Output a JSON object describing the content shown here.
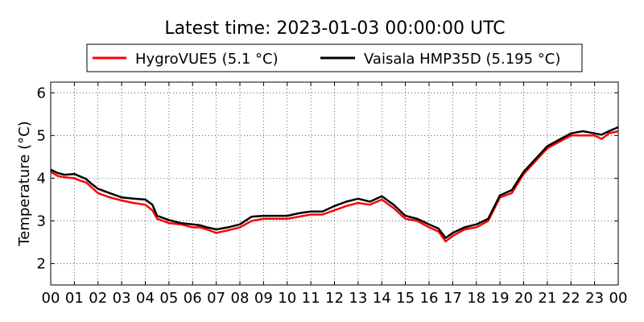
{
  "chart_data": {
    "type": "line",
    "title": "Latest time: 2023-01-03 00:00:00 UTC",
    "xlabel": "",
    "ylabel": "Temperature (°C)",
    "xlim": [
      0,
      24
    ],
    "ylim": [
      1.5,
      6.25
    ],
    "grid": true,
    "legend_position": "top",
    "x_ticks": [
      0,
      1,
      2,
      3,
      4,
      5,
      6,
      7,
      8,
      9,
      10,
      11,
      12,
      13,
      14,
      15,
      16,
      17,
      18,
      19,
      20,
      21,
      22,
      23,
      24
    ],
    "x_tick_labels": [
      "00",
      "01",
      "02",
      "03",
      "04",
      "05",
      "06",
      "07",
      "08",
      "09",
      "10",
      "11",
      "12",
      "13",
      "14",
      "15",
      "16",
      "17",
      "18",
      "19",
      "20",
      "21",
      "22",
      "23",
      "00"
    ],
    "y_ticks": [
      2,
      3,
      4,
      5,
      6
    ],
    "y_tick_labels": [
      "2",
      "3",
      "4",
      "5",
      "6"
    ],
    "series": [
      {
        "name": "HygroVUE5 (5.1 °C)",
        "color": "#ff0000",
        "x": [
          0,
          0.3,
          0.6,
          1.0,
          1.2,
          1.5,
          1.7,
          2.0,
          2.5,
          3.0,
          3.5,
          4.0,
          4.3,
          4.5,
          5.0,
          5.5,
          6.0,
          6.3,
          6.6,
          7.0,
          7.5,
          8.0,
          8.5,
          9.0,
          9.5,
          10.0,
          10.5,
          11.0,
          11.5,
          12.0,
          12.5,
          13.0,
          13.5,
          14.0,
          14.5,
          15.0,
          15.5,
          16.0,
          16.4,
          16.7,
          17.0,
          17.5,
          18.0,
          18.5,
          19.0,
          19.5,
          20.0,
          20.5,
          21.0,
          21.5,
          22.0,
          22.5,
          23.0,
          23.3,
          23.6,
          24.0
        ],
        "y": [
          4.15,
          4.05,
          4.02,
          4.0,
          3.95,
          3.9,
          3.8,
          3.65,
          3.55,
          3.48,
          3.42,
          3.38,
          3.25,
          3.05,
          2.95,
          2.92,
          2.85,
          2.85,
          2.8,
          2.72,
          2.78,
          2.85,
          3.0,
          3.05,
          3.05,
          3.05,
          3.1,
          3.15,
          3.15,
          3.25,
          3.35,
          3.42,
          3.38,
          3.5,
          3.3,
          3.05,
          3.0,
          2.85,
          2.75,
          2.52,
          2.65,
          2.8,
          2.85,
          3.0,
          3.55,
          3.65,
          4.1,
          4.4,
          4.7,
          4.85,
          5.0,
          5.0,
          5.0,
          4.92,
          5.05,
          5.1
        ]
      },
      {
        "name": "Vaisala HMP35D (5.195 °C)",
        "color": "#000000",
        "x": [
          0,
          0.3,
          0.6,
          1.0,
          1.2,
          1.5,
          1.7,
          2.0,
          2.5,
          3.0,
          3.5,
          4.0,
          4.3,
          4.5,
          5.0,
          5.5,
          6.0,
          6.3,
          6.6,
          7.0,
          7.5,
          8.0,
          8.5,
          9.0,
          9.5,
          10.0,
          10.5,
          11.0,
          11.5,
          12.0,
          12.5,
          13.0,
          13.5,
          14.0,
          14.5,
          15.0,
          15.5,
          16.0,
          16.4,
          16.7,
          17.0,
          17.5,
          18.0,
          18.5,
          19.0,
          19.5,
          20.0,
          20.5,
          21.0,
          21.5,
          22.0,
          22.5,
          23.0,
          23.3,
          23.6,
          24.0
        ],
        "y": [
          4.2,
          4.12,
          4.08,
          4.1,
          4.05,
          3.98,
          3.88,
          3.75,
          3.65,
          3.55,
          3.52,
          3.5,
          3.38,
          3.12,
          3.02,
          2.95,
          2.92,
          2.9,
          2.85,
          2.8,
          2.85,
          2.92,
          3.1,
          3.12,
          3.12,
          3.12,
          3.18,
          3.22,
          3.22,
          3.35,
          3.45,
          3.52,
          3.45,
          3.58,
          3.38,
          3.12,
          3.05,
          2.92,
          2.82,
          2.6,
          2.72,
          2.85,
          2.92,
          3.05,
          3.6,
          3.72,
          4.15,
          4.45,
          4.75,
          4.9,
          5.05,
          5.1,
          5.05,
          5.02,
          5.1,
          5.195
        ]
      }
    ]
  }
}
